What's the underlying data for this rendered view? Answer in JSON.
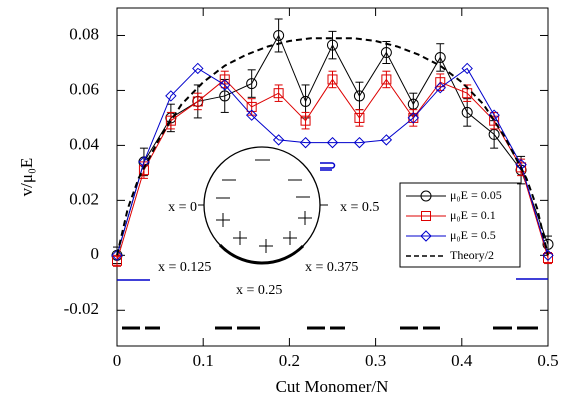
{
  "chart_data": {
    "type": "line",
    "xlabel": "Cut Monomer/N",
    "ylabel": "v/μ₀E",
    "xlim": [
      0,
      0.5
    ],
    "ylim": [
      -0.033,
      0.09
    ],
    "xticks": [
      0,
      0.1,
      0.2,
      0.3,
      0.4,
      0.5
    ],
    "yticks": [
      -0.02,
      0,
      0.02,
      0.04,
      0.06,
      0.08
    ],
    "legend": "center right",
    "annotations": [
      "x = 0",
      "x = 0.5",
      "x = 0.125",
      "x = 0.375",
      "x = 0.25"
    ],
    "series": [
      {
        "name": "μ₀E = 0.05",
        "color": "#000000",
        "marker": "circle",
        "x": [
          0,
          0.03125,
          0.0625,
          0.09375,
          0.125,
          0.15625,
          0.1875,
          0.21875,
          0.25,
          0.28125,
          0.3125,
          0.34375,
          0.375,
          0.40625,
          0.4375,
          0.46875,
          0.5
        ],
        "values": [
          0.0,
          0.034,
          0.05,
          0.056,
          0.058,
          0.0625,
          0.08,
          0.056,
          0.0765,
          0.058,
          0.0738,
          0.055,
          0.072,
          0.052,
          0.044,
          0.031,
          0.004
        ],
        "errors": [
          0.003,
          0.005,
          0.005,
          0.006,
          0.006,
          0.005,
          0.006,
          0.006,
          0.005,
          0.005,
          0.004,
          0.004,
          0.005,
          0.005,
          0.005,
          0.005,
          0.003
        ]
      },
      {
        "name": "μ₀E = 0.1",
        "color": "#dd0000",
        "marker": "square",
        "x": [
          0,
          0.03125,
          0.0625,
          0.09375,
          0.125,
          0.15625,
          0.1875,
          0.21875,
          0.25,
          0.28125,
          0.3125,
          0.34375,
          0.375,
          0.40625,
          0.4375,
          0.46875,
          0.5
        ],
        "values": [
          -0.002,
          0.031,
          0.049,
          0.056,
          0.064,
          0.054,
          0.059,
          0.049,
          0.064,
          0.05,
          0.064,
          0.05,
          0.063,
          0.059,
          0.049,
          0.032,
          -0.001
        ],
        "errors": [
          0.002,
          0.003,
          0.003,
          0.003,
          0.003,
          0.003,
          0.003,
          0.003,
          0.003,
          0.003,
          0.003,
          0.003,
          0.003,
          0.003,
          0.003,
          0.003,
          0.002
        ]
      },
      {
        "name": "μ₀E = 0.5",
        "color": "#0000cc",
        "marker": "diamond",
        "x": [
          0,
          0.03125,
          0.0625,
          0.09375,
          0.125,
          0.15625,
          0.1875,
          0.21875,
          0.25,
          0.28125,
          0.3125,
          0.34375,
          0.375,
          0.40625,
          0.4375,
          0.46875,
          0.5
        ],
        "values": [
          0.0,
          0.034,
          0.058,
          0.068,
          0.062,
          0.051,
          0.042,
          0.041,
          0.041,
          0.041,
          0.042,
          0.05,
          0.061,
          0.068,
          0.051,
          0.033,
          0.0
        ]
      },
      {
        "name": "Theory/2",
        "color": "#000000",
        "dashed": true,
        "x": [
          0,
          0.0125,
          0.025,
          0.05,
          0.075,
          0.1,
          0.125,
          0.15,
          0.175,
          0.2,
          0.225,
          0.25,
          0.275,
          0.3,
          0.325,
          0.35,
          0.375,
          0.4,
          0.425,
          0.45,
          0.475,
          0.4875,
          0.5
        ],
        "values": [
          0.0,
          0.017,
          0.028,
          0.043,
          0.055,
          0.063,
          0.069,
          0.073,
          0.076,
          0.078,
          0.079,
          0.079,
          0.079,
          0.078,
          0.076,
          0.073,
          0.069,
          0.063,
          0.055,
          0.043,
          0.028,
          0.017,
          0.0
        ]
      }
    ]
  }
}
